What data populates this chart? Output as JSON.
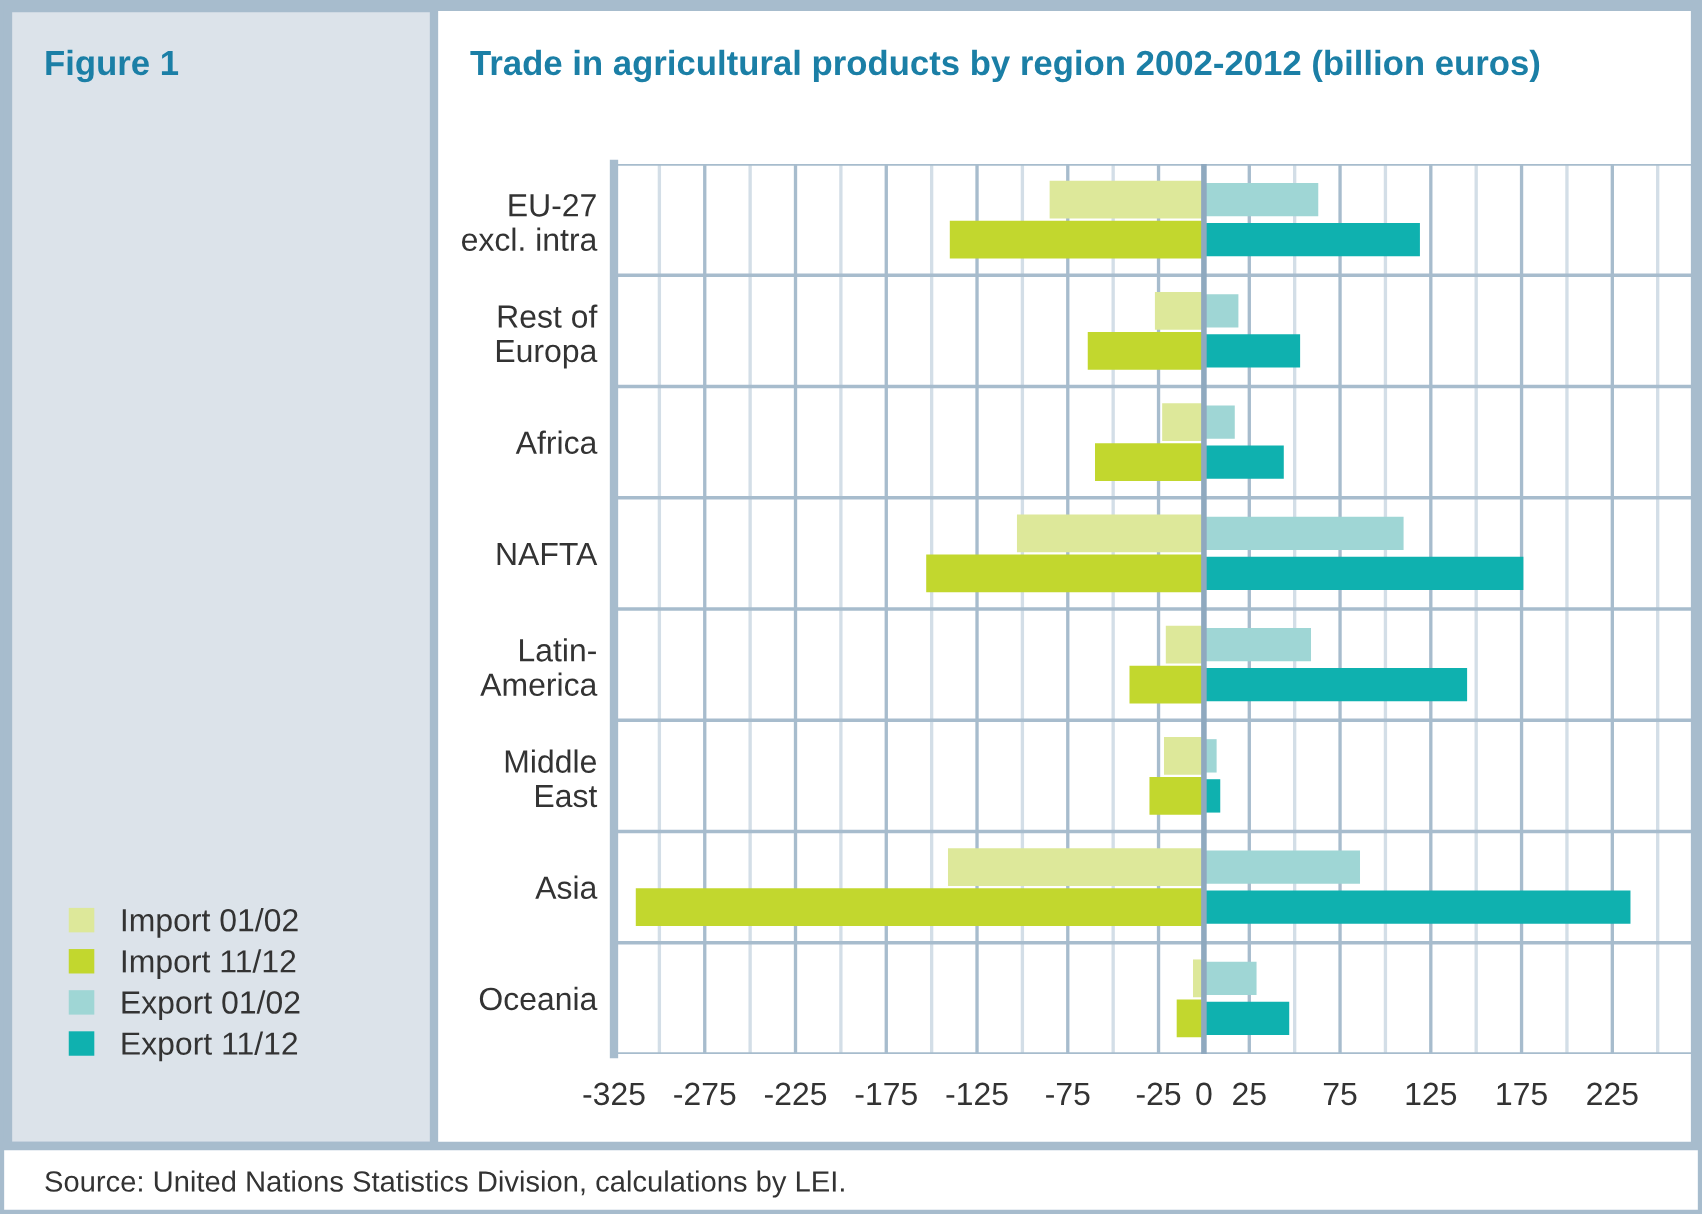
{
  "chart_data": {
    "type": "bar",
    "orientation": "horizontal",
    "title": "Trade in agricultural products by region 2002-2012 (billion euros)",
    "annotations": [
      "Figure 1",
      "Source: United Nations Statistics Division, calculations by LEI."
    ],
    "categories": [
      "EU-27\nexcl. intra",
      "Rest of\nEuropa",
      "Africa",
      "NAFTA",
      "Latin-\nAmerica",
      "Middle\nEast",
      "Asia",
      "Oceania"
    ],
    "series": [
      {
        "name": "Import 01/02",
        "color": "#dde89a",
        "values": [
          -85,
          -27,
          -23,
          -103,
          -21,
          -22,
          -141,
          -6
        ]
      },
      {
        "name": "Import 11/12",
        "color": "#c2d72e",
        "values": [
          -140,
          -64,
          -60,
          -153,
          -41,
          -30,
          -313,
          -15
        ]
      },
      {
        "name": "Export 01/02",
        "color": "#9fd6d5",
        "values": [
          63,
          19,
          17,
          110,
          59,
          7,
          86,
          29
        ]
      },
      {
        "name": "Export 11/12",
        "color": "#0fb1af",
        "values": [
          119,
          53,
          44,
          176,
          145,
          9,
          235,
          47
        ]
      }
    ],
    "xlim": [
      -325,
      270
    ],
    "xticks": [
      -325,
      {
        "value": -300,
        "label": null
      },
      -275,
      {
        "value": -250,
        "label": null
      },
      -225,
      {
        "value": -200,
        "label": null
      },
      -175,
      {
        "value": -150,
        "label": null
      },
      -125,
      {
        "value": -100,
        "label": null
      },
      -75,
      {
        "value": -50,
        "label": null
      },
      -25,
      0,
      25,
      {
        "value": 50,
        "label": null
      },
      75,
      {
        "value": 100,
        "label": null
      },
      125,
      {
        "value": 150,
        "label": null
      },
      175,
      {
        "value": 200,
        "label": null
      },
      225,
      {
        "value": 250,
        "label": null
      }
    ],
    "ref_lines": [
      {
        "axis": "x",
        "value": 0,
        "label": null,
        "color": "#8fa9bf"
      }
    ],
    "grid": true,
    "legend": "bottom left"
  }
}
